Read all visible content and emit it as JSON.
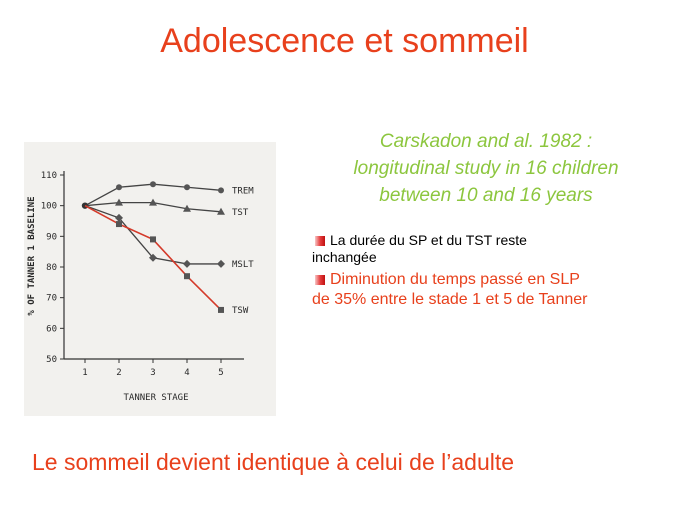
{
  "slide": {
    "title": "Adolescence et sommeil",
    "citation_lines": [
      "Carskadon and al. 1982 :",
      "longitudinal study in 16  children",
      "between 10 and 16 years"
    ],
    "bullets": [
      {
        "icon": "bullet-square-icon",
        "line1": "La durée du SP et du TST reste",
        "line2": "inchangée"
      },
      {
        "icon": "bullet-square-icon",
        "line1": "Diminution du temps passé en SLP",
        "line2": "de 35% entre le stade 1 et 5 de Tanner"
      }
    ],
    "conclusion": "Le sommeil devient identique à celui de l’adulte"
  },
  "colors": {
    "title": "#e8401c",
    "citation": "#8cc63e",
    "tsw_line": "#d43a2a",
    "series_line": "#444444"
  },
  "chart_data": {
    "type": "line",
    "xlabel": "TANNER STAGE",
    "ylabel": "% OF TANNER 1 BASELINE",
    "x": [
      1,
      2,
      3,
      4,
      5
    ],
    "ylim": [
      50,
      110
    ],
    "yticks": [
      50,
      60,
      70,
      80,
      90,
      100,
      110
    ],
    "grid": false,
    "series": [
      {
        "name": "TREM",
        "values": [
          100,
          106,
          107,
          106,
          105
        ],
        "marker": "circle"
      },
      {
        "name": "TST",
        "values": [
          100,
          101,
          101,
          99,
          98
        ],
        "marker": "triangle"
      },
      {
        "name": "MSLT",
        "values": [
          100,
          96,
          83,
          81,
          81
        ],
        "marker": "diamond"
      },
      {
        "name": "TSW",
        "values": [
          100,
          94,
          89,
          77,
          66
        ],
        "marker": "square"
      }
    ]
  }
}
